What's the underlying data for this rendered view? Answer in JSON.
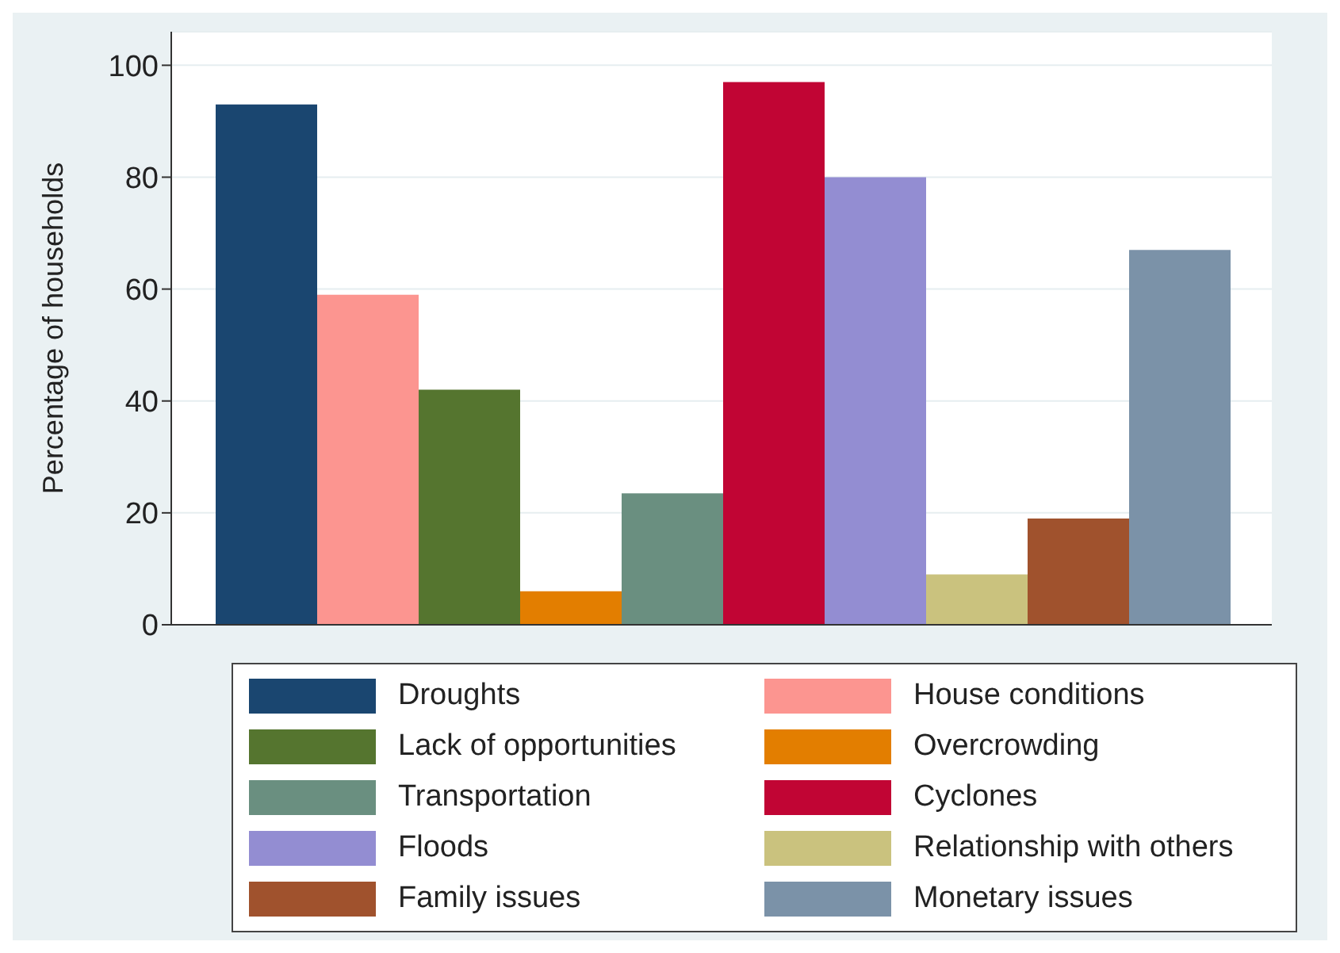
{
  "chart_data": {
    "type": "bar",
    "ylabel": "Percentage of households",
    "categories": [
      null
    ],
    "series": [
      {
        "name": "Droughts",
        "color": "#1a4670",
        "values": [
          93
        ]
      },
      {
        "name": "House conditions",
        "color": "#fc9590",
        "values": [
          59
        ]
      },
      {
        "name": "Lack of opportunities",
        "color": "#55752f",
        "values": [
          42
        ]
      },
      {
        "name": "Overcrowding",
        "color": "#e37e00",
        "values": [
          6
        ]
      },
      {
        "name": "Transportation",
        "color": "#6a8f80",
        "values": [
          23.5
        ]
      },
      {
        "name": "Cyclones",
        "color": "#c10534",
        "values": [
          97
        ]
      },
      {
        "name": "Floods",
        "color": "#938dd2",
        "values": [
          80
        ]
      },
      {
        "name": "Relationship with others",
        "color": "#cac27e",
        "values": [
          9
        ]
      },
      {
        "name": "Family issues",
        "color": "#a0522d",
        "values": [
          19
        ]
      },
      {
        "name": "Monetary issues",
        "color": "#7b92a8",
        "values": [
          67
        ]
      }
    ],
    "ylim": [
      0,
      106
    ],
    "yticks": [
      0,
      20,
      40,
      60,
      80,
      100
    ],
    "grid": "y",
    "legend": "bottom"
  }
}
